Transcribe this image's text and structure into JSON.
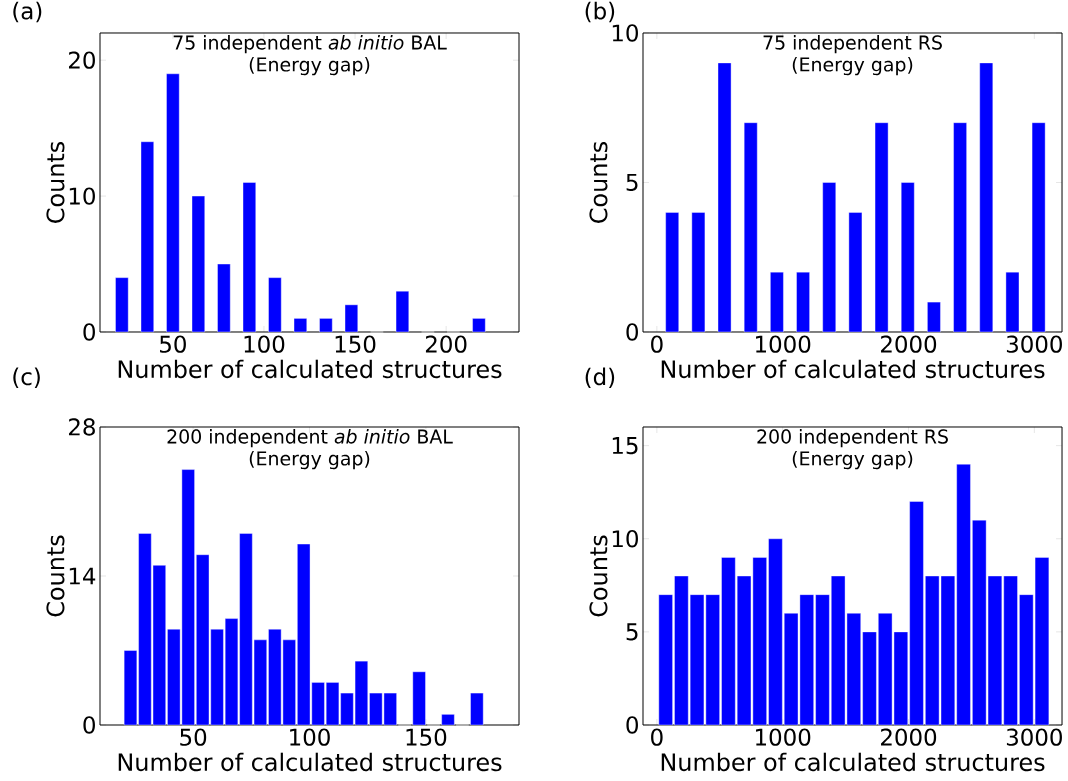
{
  "chart_data": [
    {
      "type": "histogram",
      "title": "75 independent *ab initio* BAL",
      "subtitle": "(Energy gap)",
      "xlabel": "Number of calculated structures",
      "ylabel": "Counts",
      "annotations": [
        "(a)"
      ],
      "bins": [
        15,
        29,
        43,
        57,
        71,
        85,
        99,
        113,
        127,
        141,
        155,
        169,
        183,
        197,
        211,
        225
      ],
      "values": [
        4,
        14,
        19,
        10,
        5,
        11,
        4,
        1,
        1,
        2,
        0,
        3,
        0,
        0,
        1
      ],
      "color": "#0000ff",
      "xlim": [
        10,
        240
      ],
      "ylim": [
        0,
        22
      ],
      "xticks": [
        50,
        100,
        150,
        200
      ],
      "yticks": [
        0,
        10,
        20
      ]
    },
    {
      "type": "histogram",
      "title": "75 independent RS",
      "subtitle": "(Energy gap)",
      "xlabel": "Number of calculated structures",
      "ylabel": "Counts",
      "annotations": [
        "(b)"
      ],
      "bins": [
        18,
        226,
        434,
        642,
        850,
        1058,
        1266,
        1474,
        1682,
        1890,
        2098,
        2306,
        2514,
        2722,
        2930,
        3138
      ],
      "values": [
        4,
        4,
        9,
        7,
        2,
        2,
        5,
        4,
        7,
        5,
        1,
        7,
        9,
        2,
        7
      ],
      "color": "#0000ff",
      "xlim": [
        -110,
        3220
      ],
      "ylim": [
        0,
        10
      ],
      "xticks": [
        0,
        1000,
        2000,
        3000
      ],
      "yticks": [
        0,
        5,
        10
      ]
    },
    {
      "type": "histogram",
      "title": "200 independent *ab initio* BAL",
      "subtitle": "(Energy gap)",
      "xlabel": "Number of calculated structures",
      "ylabel": "Counts",
      "annotations": [
        "(c)"
      ],
      "bins": [
        20,
        26.2,
        32.4,
        38.6,
        44.8,
        51,
        57.2,
        63.4,
        69.6,
        75.8,
        82,
        88.2,
        94.4,
        100.6,
        106.8,
        113,
        119.2,
        125.4,
        131.6,
        137.8,
        144,
        150.2,
        156.4,
        162.6,
        168.8,
        175
      ],
      "values": [
        7,
        18,
        15,
        9,
        24,
        16,
        9,
        10,
        18,
        8,
        9,
        8,
        17,
        4,
        4,
        3,
        6,
        3,
        3,
        0,
        5,
        0,
        1,
        0,
        3
      ],
      "color": "#0000ff",
      "xlim": [
        10,
        190
      ],
      "ylim": [
        0,
        28
      ],
      "xticks": [
        50,
        100,
        150
      ],
      "yticks": [
        0,
        14,
        28
      ]
    },
    {
      "type": "histogram",
      "title": "200 independent RS",
      "subtitle": "(Energy gap)",
      "xlabel": "Number of calculated structures",
      "ylabel": "Counts",
      "annotations": [
        "(d)"
      ],
      "bins": [
        8,
        132.6,
        257.2,
        381.8,
        506.4,
        631,
        755.6,
        880.2,
        1004.8,
        1129.4,
        1254,
        1378.6,
        1503.2,
        1627.8,
        1752.4,
        1877,
        2001.6,
        2126.2,
        2250.8,
        2375.4,
        2500,
        2624.6,
        2749.2,
        2873.8,
        2998.4,
        3123
      ],
      "values": [
        7,
        8,
        7,
        7,
        9,
        8,
        9,
        10,
        6,
        7,
        7,
        8,
        6,
        5,
        6,
        5,
        12,
        8,
        8,
        14,
        11,
        8,
        8,
        7,
        9
      ],
      "color": "#0000ff",
      "xlim": [
        -110,
        3220
      ],
      "ylim": [
        0,
        16
      ],
      "xticks": [
        0,
        1000,
        2000,
        3000
      ],
      "yticks": [
        0,
        5,
        10,
        15
      ]
    }
  ]
}
